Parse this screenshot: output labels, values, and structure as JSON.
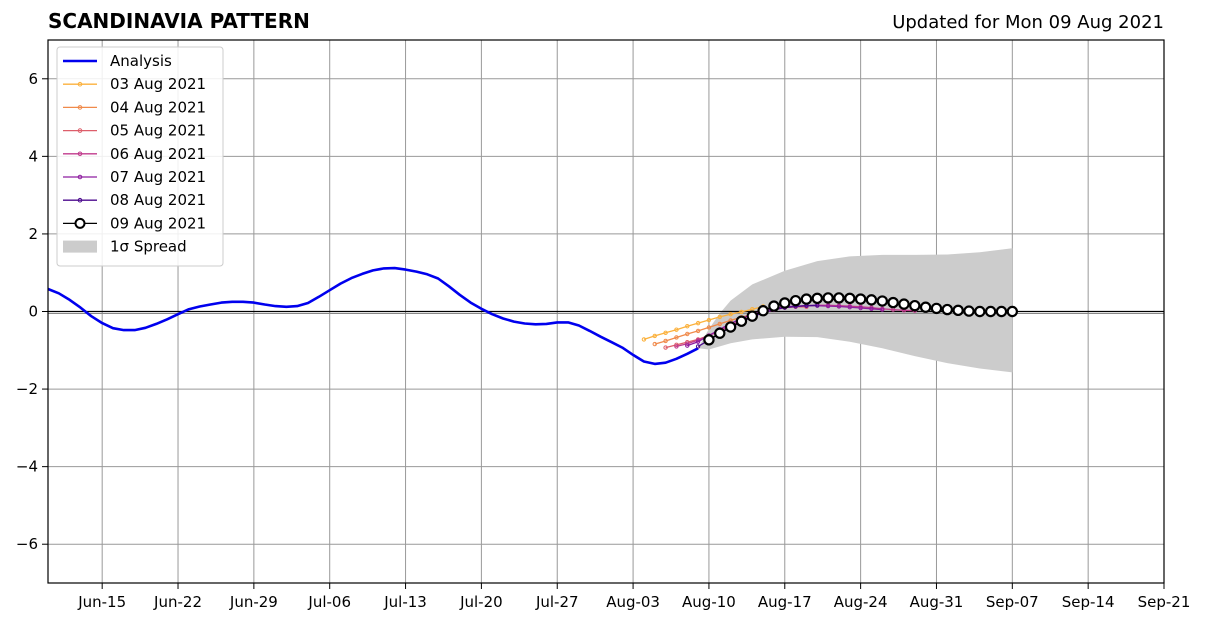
{
  "title": "SCANDINAVIA PATTERN",
  "subtitle": "Updated for Mon 09 Aug 2021",
  "chart_data": {
    "type": "line",
    "title": "SCANDINAVIA PATTERN",
    "subtitle": "Updated for Mon 09 Aug 2021",
    "xlabel": "",
    "ylabel": "",
    "xlim": [
      "2021-06-10",
      "2021-09-21"
    ],
    "ylim": [
      -7,
      7
    ],
    "x_ticks": [
      "2021-06-15",
      "2021-06-22",
      "2021-06-29",
      "2021-07-06",
      "2021-07-13",
      "2021-07-20",
      "2021-07-27",
      "2021-08-03",
      "2021-08-10",
      "2021-08-17",
      "2021-08-24",
      "2021-08-31",
      "2021-09-07",
      "2021-09-14",
      "2021-09-21"
    ],
    "x_tick_labels": [
      "Jun-15",
      "Jun-22",
      "Jun-29",
      "Jul-06",
      "Jul-13",
      "Jul-20",
      "Jul-27",
      "Aug-03",
      "Aug-10",
      "Aug-17",
      "Aug-24",
      "Aug-31",
      "Sep-07",
      "Sep-14",
      "Sep-21"
    ],
    "y_ticks": [
      -6,
      -4,
      -2,
      0,
      2,
      4,
      6
    ],
    "y_tick_labels": [
      "−6",
      "−4",
      "−2",
      "0",
      "2",
      "4",
      "6"
    ],
    "grid": true,
    "legend_position": "top-left",
    "legend": [
      "Analysis",
      "03 Aug 2021",
      "04 Aug 2021",
      "05 Aug 2021",
      "06 Aug 2021",
      "07 Aug 2021",
      "08 Aug 2021",
      "09 Aug 2021",
      "1σ Spread"
    ],
    "analysis": {
      "name": "Analysis",
      "color": "#0000ee",
      "points": [
        [
          "2021-06-10",
          0.58
        ],
        [
          "2021-06-11",
          0.47
        ],
        [
          "2021-06-12",
          0.3
        ],
        [
          "2021-06-13",
          0.1
        ],
        [
          "2021-06-14",
          -0.12
        ],
        [
          "2021-06-15",
          -0.3
        ],
        [
          "2021-06-16",
          -0.43
        ],
        [
          "2021-06-17",
          -0.48
        ],
        [
          "2021-06-18",
          -0.48
        ],
        [
          "2021-06-19",
          -0.42
        ],
        [
          "2021-06-20",
          -0.32
        ],
        [
          "2021-06-21",
          -0.2
        ],
        [
          "2021-06-22",
          -0.07
        ],
        [
          "2021-06-23",
          0.06
        ],
        [
          "2021-06-24",
          0.13
        ],
        [
          "2021-06-25",
          0.18
        ],
        [
          "2021-06-26",
          0.23
        ],
        [
          "2021-06-27",
          0.25
        ],
        [
          "2021-06-28",
          0.25
        ],
        [
          "2021-06-29",
          0.23
        ],
        [
          "2021-06-30",
          0.18
        ],
        [
          "2021-07-01",
          0.14
        ],
        [
          "2021-07-02",
          0.12
        ],
        [
          "2021-07-03",
          0.14
        ],
        [
          "2021-07-04",
          0.22
        ],
        [
          "2021-07-05",
          0.38
        ],
        [
          "2021-07-06",
          0.55
        ],
        [
          "2021-07-07",
          0.72
        ],
        [
          "2021-07-08",
          0.86
        ],
        [
          "2021-07-09",
          0.97
        ],
        [
          "2021-07-10",
          1.06
        ],
        [
          "2021-07-11",
          1.11
        ],
        [
          "2021-07-12",
          1.12
        ],
        [
          "2021-07-13",
          1.08
        ],
        [
          "2021-07-14",
          1.03
        ],
        [
          "2021-07-15",
          0.96
        ],
        [
          "2021-07-16",
          0.85
        ],
        [
          "2021-07-17",
          0.65
        ],
        [
          "2021-07-18",
          0.43
        ],
        [
          "2021-07-19",
          0.23
        ],
        [
          "2021-07-20",
          0.07
        ],
        [
          "2021-07-21",
          -0.07
        ],
        [
          "2021-07-22",
          -0.18
        ],
        [
          "2021-07-23",
          -0.26
        ],
        [
          "2021-07-24",
          -0.31
        ],
        [
          "2021-07-25",
          -0.33
        ],
        [
          "2021-07-26",
          -0.32
        ],
        [
          "2021-07-27",
          -0.28
        ],
        [
          "2021-07-28",
          -0.28
        ],
        [
          "2021-07-29",
          -0.36
        ],
        [
          "2021-07-30",
          -0.5
        ],
        [
          "2021-07-31",
          -0.65
        ],
        [
          "2021-08-01",
          -0.79
        ],
        [
          "2021-08-02",
          -0.93
        ],
        [
          "2021-08-03",
          -1.12
        ],
        [
          "2021-08-04",
          -1.29
        ],
        [
          "2021-08-05",
          -1.35
        ],
        [
          "2021-08-06",
          -1.32
        ],
        [
          "2021-08-07",
          -1.22
        ],
        [
          "2021-08-08",
          -1.09
        ],
        [
          "2021-08-09",
          -0.95
        ]
      ]
    },
    "forecasts": [
      {
        "name": "03 Aug 2021",
        "color": "#fbb13c",
        "start": "2021-08-04",
        "values": [
          -0.72,
          -0.63,
          -0.55,
          -0.47,
          -0.38,
          -0.3,
          -0.22,
          -0.14,
          -0.07,
          -0.01,
          0.06,
          0.13
        ]
      },
      {
        "name": "04 Aug 2021",
        "color": "#f08a4b",
        "start": "2021-08-05",
        "values": [
          -0.84,
          -0.76,
          -0.67,
          -0.58,
          -0.5,
          -0.41,
          -0.32,
          -0.23,
          -0.15,
          -0.07,
          0.02,
          0.08,
          0.13
        ]
      },
      {
        "name": "05 Aug 2021",
        "color": "#dd5e6a",
        "start": "2021-08-06",
        "values": [
          -0.93,
          -0.86,
          -0.79,
          -0.72,
          -0.62,
          -0.49,
          -0.36,
          -0.23,
          -0.11,
          -0.03,
          0.05,
          0.1,
          0.12,
          0.12
        ]
      },
      {
        "name": "06 Aug 2021",
        "color": "#c03a8c",
        "start": "2021-08-07",
        "values": [
          -0.9,
          -0.83,
          -0.74,
          -0.62,
          -0.5,
          -0.36,
          -0.23,
          -0.12,
          -0.04,
          0.04,
          0.1,
          0.13,
          0.15,
          0.16,
          0.16,
          0.15,
          0.14,
          0.12,
          0.1,
          0.07,
          0.05,
          0.03,
          0.02
        ]
      },
      {
        "name": "07 Aug 2021",
        "color": "#8e1ea0",
        "start": "2021-08-08",
        "values": [
          -0.88,
          -0.78,
          -0.62,
          -0.46,
          -0.31,
          -0.18,
          -0.07,
          0.02,
          0.08,
          0.12,
          0.14,
          0.15,
          0.15,
          0.14,
          0.13,
          0.11,
          0.09,
          0.07,
          0.05
        ]
      },
      {
        "name": "08 Aug 2021",
        "color": "#4b0a8e",
        "start": "2021-08-09",
        "values": [
          -0.9,
          -0.74,
          -0.57,
          -0.41,
          -0.27,
          -0.14,
          -0.03,
          0.05,
          0.1,
          0.13,
          0.15,
          0.16
        ]
      },
      {
        "name": "09 Aug 2021",
        "color": "#000000",
        "start": "2021-08-10",
        "values": [
          -0.73,
          -0.56,
          -0.4,
          -0.25,
          -0.12,
          0.02,
          0.14,
          0.22,
          0.28,
          0.32,
          0.34,
          0.35,
          0.35,
          0.34,
          0.32,
          0.3,
          0.27,
          0.23,
          0.19,
          0.15,
          0.11,
          0.08,
          0.05,
          0.03,
          0.01,
          0.0,
          0.0,
          0.0,
          0.0
        ]
      }
    ],
    "spread": {
      "name": "1σ Spread",
      "color": "#cccccc",
      "points": [
        [
          "2021-08-09",
          -0.95,
          -0.95
        ],
        [
          "2021-08-10",
          -0.98,
          -0.45
        ],
        [
          "2021-08-11",
          -0.9,
          -0.05
        ],
        [
          "2021-08-12",
          -0.82,
          0.28
        ],
        [
          "2021-08-14",
          -0.72,
          0.7
        ],
        [
          "2021-08-17",
          -0.65,
          1.05
        ],
        [
          "2021-08-20",
          -0.66,
          1.3
        ],
        [
          "2021-08-23",
          -0.78,
          1.42
        ],
        [
          "2021-08-26",
          -0.95,
          1.46
        ],
        [
          "2021-08-29",
          -1.15,
          1.46
        ],
        [
          "2021-09-01",
          -1.33,
          1.47
        ],
        [
          "2021-09-04",
          -1.47,
          1.53
        ],
        [
          "2021-09-07",
          -1.57,
          1.63
        ]
      ]
    }
  }
}
